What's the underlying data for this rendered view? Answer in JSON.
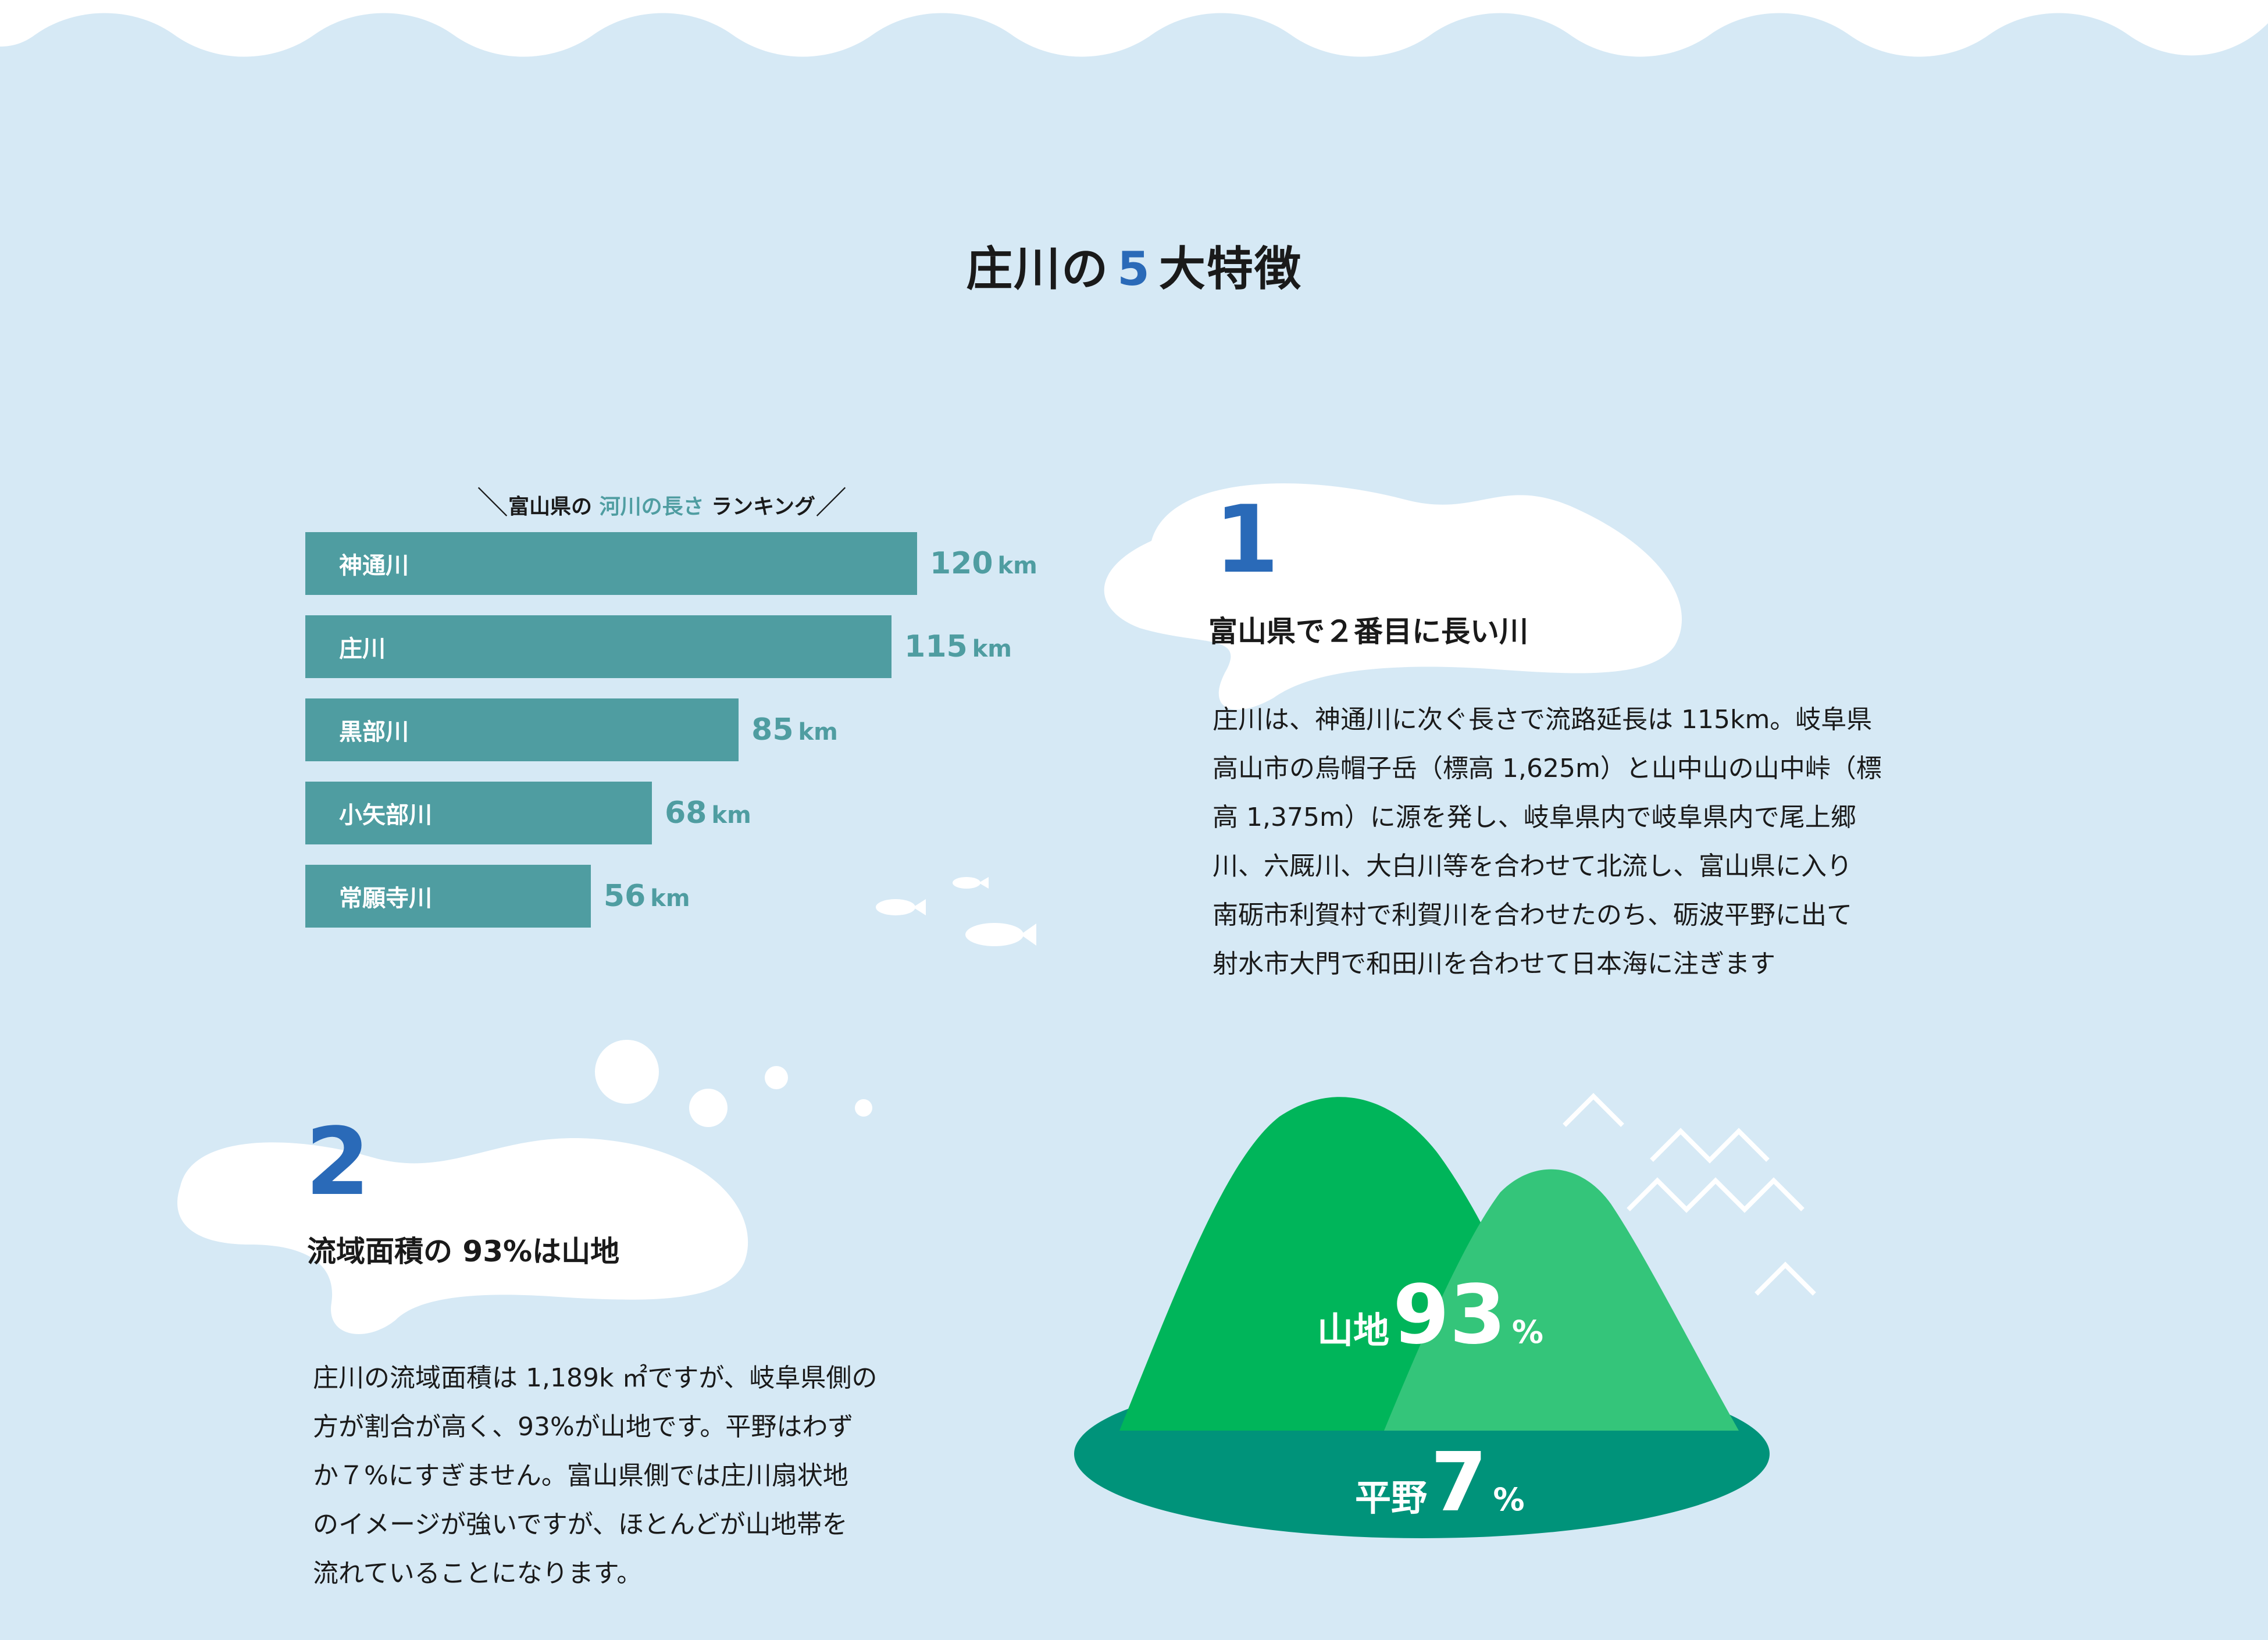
{
  "page": {
    "title_prefix": "庄川の",
    "title_number": "5",
    "title_suffix": "大特徴"
  },
  "ranking": {
    "title_part1": "富山県の",
    "title_highlight": "河川の長さ",
    "title_part3": "ランキング"
  },
  "chart_data": [
    {
      "type": "bar",
      "orientation": "horizontal",
      "title": "富山県の 河川の長さ ランキング",
      "categories": [
        "神通川",
        "庄川",
        "黒部川",
        "小矢部川",
        "常願寺川"
      ],
      "values": [
        120,
        115,
        85,
        68,
        56
      ],
      "unit": "km",
      "bar_color": "#4f9da1"
    },
    {
      "type": "pie",
      "style": "mountain-illustration",
      "categories": [
        "山地",
        "平野"
      ],
      "values": [
        93,
        7
      ],
      "unit": "%",
      "colors": [
        "#00b55a",
        "#00937a"
      ]
    }
  ],
  "feature1": {
    "number": "1",
    "heading": "富山県で２番目に長い川",
    "lines": [
      "庄川は、神通川に次ぐ長さで流路延長は 115km。岐阜県",
      "高山市の烏帽子岳（標高 1,625m）と山中山の山中峠（標",
      "高 1,375m）に源を発し、岐阜県内で岐阜県内で尾上郷",
      "川、六厩川、大白川等を合わせて北流し、富山県に入り",
      "南砺市利賀村で利賀川を合わせたのち、砺波平野に出て",
      "射水市大門で和田川を合わせて日本海に注ぎます"
    ]
  },
  "feature2": {
    "number": "2",
    "heading": "流域面積の 93%は山地",
    "lines": [
      "庄川の流域面積は 1,189k ㎡ですが、岐阜県側の",
      "方が割合が高く、93%が山地です。平野はわず",
      "か７%にすぎません。富山県側では庄川扇状地",
      "のイメージが強いですが、ほとんどが山地帯を",
      "流れていることになります。"
    ]
  },
  "mountain": {
    "label_mountain": "山地",
    "value_mountain": "93",
    "label_plain": "平野",
    "value_plain": "7",
    "pct_sign": "%"
  },
  "colors": {
    "background": "#d6e9f5",
    "accent_blue": "#2a6ab8",
    "bar_teal": "#4f9da1",
    "mountain_green": "#00b55a",
    "mountain_light_green": "#34c57a",
    "base_teal": "#00937a"
  }
}
